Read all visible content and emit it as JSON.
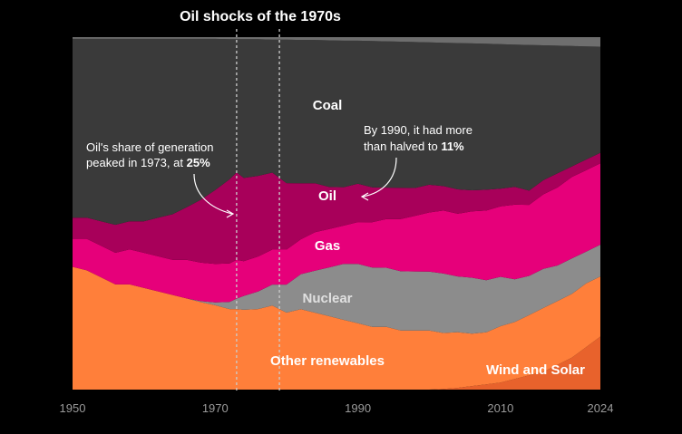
{
  "chart_data": {
    "type": "area",
    "stacked": true,
    "normalized": true,
    "title": "Oil shocks of the 1970s",
    "shaded_period": [
      1973,
      1979
    ],
    "xlim": [
      1950,
      2024
    ],
    "ylim": [
      0,
      1
    ],
    "x_ticks": [
      "1950",
      "1970",
      "1990",
      "2010",
      "2024"
    ],
    "x": [
      1950,
      1952,
      1954,
      1956,
      1958,
      1960,
      1962,
      1964,
      1966,
      1968,
      1970,
      1972,
      1973,
      1974,
      1976,
      1978,
      1980,
      1982,
      1984,
      1986,
      1988,
      1990,
      1992,
      1994,
      1996,
      1998,
      2000,
      2002,
      2004,
      2006,
      2008,
      2010,
      2012,
      2014,
      2016,
      2018,
      2020,
      2022,
      2024
    ],
    "series": [
      {
        "name": "Wind and Solar",
        "color": "#e8622c",
        "values": [
          0,
          0,
          0,
          0,
          0,
          0,
          0,
          0,
          0,
          0,
          0,
          0,
          0,
          0,
          0,
          0,
          0,
          0,
          0,
          0,
          0,
          0,
          0,
          0,
          0,
          0,
          0,
          0.002,
          0.005,
          0.01,
          0.015,
          0.02,
          0.03,
          0.04,
          0.05,
          0.07,
          0.09,
          0.12,
          0.15
        ]
      },
      {
        "name": "Other renewables",
        "color": "#ff7f3a",
        "values": [
          0.35,
          0.34,
          0.32,
          0.3,
          0.3,
          0.29,
          0.28,
          0.27,
          0.26,
          0.25,
          0.24,
          0.23,
          0.23,
          0.23,
          0.23,
          0.24,
          0.22,
          0.23,
          0.22,
          0.21,
          0.2,
          0.19,
          0.18,
          0.18,
          0.17,
          0.17,
          0.17,
          0.16,
          0.16,
          0.15,
          0.15,
          0.16,
          0.16,
          0.17,
          0.18,
          0.18,
          0.18,
          0.18,
          0.17
        ]
      },
      {
        "name": "Nuclear",
        "color": "#8c8c8c",
        "values": [
          0,
          0,
          0,
          0,
          0,
          0,
          0,
          0,
          0,
          0.003,
          0.008,
          0.02,
          0.03,
          0.04,
          0.05,
          0.06,
          0.08,
          0.1,
          0.12,
          0.14,
          0.16,
          0.17,
          0.17,
          0.17,
          0.17,
          0.17,
          0.17,
          0.17,
          0.16,
          0.16,
          0.15,
          0.14,
          0.12,
          0.11,
          0.11,
          0.1,
          0.1,
          0.09,
          0.09
        ]
      },
      {
        "name": "Gas",
        "color": "#e6007a",
        "values": [
          0.08,
          0.09,
          0.09,
          0.09,
          0.1,
          0.1,
          0.1,
          0.1,
          0.11,
          0.11,
          0.11,
          0.11,
          0.11,
          0.1,
          0.1,
          0.1,
          0.1,
          0.1,
          0.11,
          0.11,
          0.11,
          0.12,
          0.13,
          0.14,
          0.15,
          0.16,
          0.17,
          0.18,
          0.18,
          0.19,
          0.2,
          0.2,
          0.21,
          0.2,
          0.21,
          0.22,
          0.23,
          0.23,
          0.23
        ]
      },
      {
        "name": "Oil",
        "color": "#a8005a",
        "values": [
          0.06,
          0.06,
          0.07,
          0.08,
          0.08,
          0.09,
          0.11,
          0.13,
          0.15,
          0.18,
          0.21,
          0.24,
          0.25,
          0.24,
          0.23,
          0.22,
          0.19,
          0.16,
          0.14,
          0.12,
          0.11,
          0.11,
          0.1,
          0.09,
          0.09,
          0.08,
          0.08,
          0.07,
          0.07,
          0.06,
          0.06,
          0.05,
          0.05,
          0.04,
          0.04,
          0.04,
          0.03,
          0.03,
          0.03
        ]
      },
      {
        "name": "Coal",
        "color": "#3a3a3a",
        "values": [
          0.51,
          0.51,
          0.52,
          0.53,
          0.52,
          0.52,
          0.51,
          0.5,
          0.48,
          0.46,
          0.43,
          0.4,
          0.38,
          0.4,
          0.39,
          0.38,
          0.41,
          0.41,
          0.41,
          0.42,
          0.42,
          0.41,
          0.42,
          0.42,
          0.42,
          0.42,
          0.41,
          0.41,
          0.42,
          0.42,
          0.42,
          0.41,
          0.4,
          0.41,
          0.38,
          0.36,
          0.34,
          0.32,
          0.3
        ]
      },
      {
        "name": "",
        "color": "#6e6e6e",
        "values": [
          0.005,
          0.005,
          0.005,
          0.005,
          0.005,
          0.005,
          0.005,
          0.005,
          0.005,
          0.005,
          0.005,
          0.006,
          0.006,
          0.006,
          0.006,
          0.007,
          0.007,
          0.008,
          0.008,
          0.009,
          0.01,
          0.01,
          0.011,
          0.012,
          0.013,
          0.014,
          0.015,
          0.016,
          0.017,
          0.018,
          0.019,
          0.02,
          0.021,
          0.022,
          0.023,
          0.024,
          0.025,
          0.026,
          0.027
        ]
      }
    ],
    "labels": {
      "coal": "Coal",
      "oil": "Oil",
      "gas": "Gas",
      "nuclear": "Nuclear",
      "other_renewables": "Other renewables",
      "wind_solar": "Wind and Solar"
    },
    "annotations": {
      "left_line1": "Oil's share of generation",
      "left_line2": "peaked in 1973, at",
      "left_value": "25%",
      "right_line1": "By 1990, it had more",
      "right_line2": "than halved to",
      "right_value": "11%"
    }
  },
  "colors": {
    "background": "#000000",
    "text": "#ffffff",
    "nuclear_label": "#e0e0e0",
    "axis_text": "#9a9a9a",
    "dashed_line": "#cccccc"
  }
}
